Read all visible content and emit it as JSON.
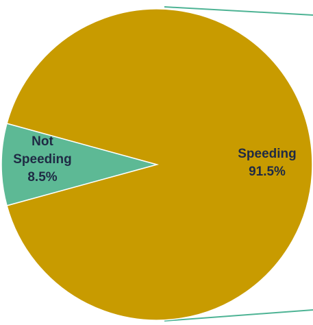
{
  "chart_data": {
    "type": "pie",
    "title": "",
    "slices": [
      {
        "label_lines": [
          "Speeding"
        ],
        "value_label": "91.5%",
        "value": 91.5,
        "color": "#C89B00",
        "label_color": "#1F2A44"
      },
      {
        "label_lines": [
          "Not",
          "Speeding"
        ],
        "value_label": "8.5%",
        "value": 8.5,
        "color": "#5DB995",
        "label_color": "#1F2A44"
      }
    ],
    "connector_color": "#4DB394",
    "legend": "none"
  }
}
